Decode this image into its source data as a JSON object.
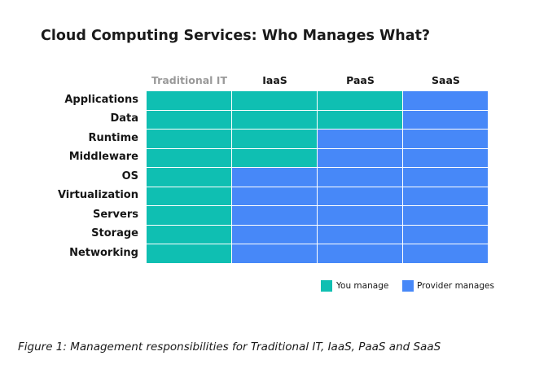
{
  "title": "Cloud Computing Services: Who Manages What?",
  "columns": [
    "Traditional IT",
    "IaaS",
    "PaaS",
    "SaaS"
  ],
  "rows": [
    "Applications",
    "Data",
    "Runtime",
    "Middleware",
    "OS",
    "Virtualization",
    "Servers",
    "Storage",
    "Networking"
  ],
  "customer_managed_layers": [
    9,
    4,
    2,
    0
  ],
  "legend": {
    "you_manage": "You manage",
    "provider_manages": "Provider manages"
  },
  "colors": {
    "you_manage": "#0fbfb2",
    "provider_manages": "#4788f8"
  },
  "caption": "Figure 1: Management responsibilities for Traditional IT, IaaS, PaaS and SaaS"
}
